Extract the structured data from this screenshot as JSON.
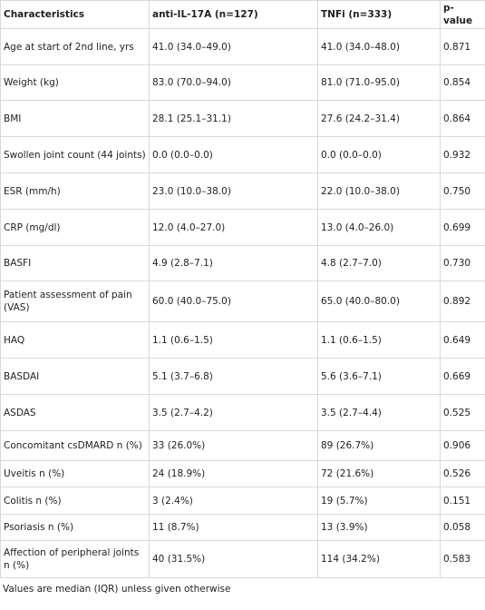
{
  "table": {
    "headers": [
      "Characteristics",
      "anti-IL-17A (n=127)",
      "TNFi (n=333)",
      "p-value"
    ],
    "rows": [
      {
        "label": "Age at start of 2nd line, yrs",
        "il17": "41.0 (34.0–49.0)",
        "tnfi": "41.0 (34.0–48.0)",
        "p": "0.871"
      },
      {
        "label": "Weight (kg)",
        "il17": "83.0 (70.0–94.0)",
        "tnfi": "81.0 (71.0–95.0)",
        "p": "0.854"
      },
      {
        "label": "BMI",
        "il17": "28.1 (25.1–31.1)",
        "tnfi": "27.6 (24.2–31.4)",
        "p": "0.864"
      },
      {
        "label": "Swollen joint count (44 joints)",
        "il17": "0.0 (0.0–0.0)",
        "tnfi": "0.0 (0.0–0.0)",
        "p": "0.932"
      },
      {
        "label": "ESR (mm/h)",
        "il17": "23.0 (10.0–38.0)",
        "tnfi": "22.0 (10.0–38.0)",
        "p": "0.750"
      },
      {
        "label": "CRP (mg/dl)",
        "il17": "12.0 (4.0–27.0)",
        "tnfi": "13.0 (4.0–26.0)",
        "p": "0.699"
      },
      {
        "label": "BASFI",
        "il17": "4.9 (2.8–7.1)",
        "tnfi": "4.8 (2.7–7.0)",
        "p": "0.730"
      },
      {
        "label": "Patient assessment of pain (VAS)",
        "il17": "60.0 (40.0–75.0)",
        "tnfi": "65.0 (40.0–80.0)",
        "p": "0.892"
      },
      {
        "label": "HAQ",
        "il17": "1.1 (0.6–1.5)",
        "tnfi": "1.1 (0.6–1.5)",
        "p": "0.649"
      },
      {
        "label": "BASDAI",
        "il17": "5.1 (3.7–6.8)",
        "tnfi": "5.6 (3.6–7.1)",
        "p": "0.669"
      },
      {
        "label": "ASDAS",
        "il17": "3.5 (2.7–4.2)",
        "tnfi": "3.5 (2.7–4.4)",
        "p": "0.525"
      },
      {
        "label": "Concomitant csDMARD n (%)",
        "il17": "33 (26.0%)",
        "tnfi": "89 (26.7%)",
        "p": "0.906"
      },
      {
        "label": "Uveitis n (%)",
        "il17": "24 (18.9%)",
        "tnfi": "72 (21.6%)",
        "p": "0.526"
      },
      {
        "label": "Colitis n (%)",
        "il17": "3 (2.4%)",
        "tnfi": "19 (5.7%)",
        "p": "0.151"
      },
      {
        "label": "Psoriasis n (%)",
        "il17": "11 (8.7%)",
        "tnfi": "13 (3.9%)",
        "p": "0.058"
      },
      {
        "label": "Affection of peripheral joints n (%)",
        "il17": "40 (31.5%)",
        "tnfi": "114 (34.2%)",
        "p": "0.583"
      }
    ]
  },
  "footnote": "Values are median (IQR) unless given otherwise"
}
